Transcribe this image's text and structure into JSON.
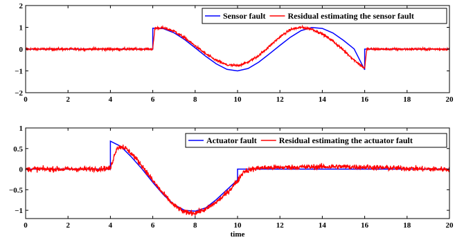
{
  "chart_data": [
    {
      "type": "line",
      "title": "",
      "xlabel": "",
      "ylabel": "",
      "xlim": [
        0,
        20
      ],
      "ylim": [
        -2,
        2
      ],
      "x_ticks": [
        0,
        2,
        4,
        6,
        8,
        10,
        12,
        14,
        16,
        18,
        20
      ],
      "y_ticks": [
        -2,
        -1,
        0,
        1,
        2
      ],
      "x_tick_labels": [
        "0",
        "2",
        "4",
        "6",
        "8",
        "10",
        "12",
        "14",
        "16",
        "18",
        "20"
      ],
      "y_tick_labels": [
        "−2",
        "−1",
        "0",
        "1",
        "2"
      ],
      "grid": false,
      "legend_position": "top-right",
      "series": [
        {
          "name": "Sensor fault",
          "color": "#0000ff",
          "x": [
            0,
            1,
            2,
            3,
            4,
            5,
            6,
            6,
            6.5,
            7,
            7.5,
            8,
            8.5,
            9,
            9.5,
            10,
            10.5,
            11,
            11.5,
            12,
            12.5,
            13,
            13.5,
            14,
            14.5,
            15,
            15.5,
            16,
            16,
            17,
            18,
            19,
            20
          ],
          "y": [
            0,
            0,
            0,
            0,
            0,
            0,
            0,
            0.96,
            0.94,
            0.75,
            0.44,
            0.06,
            -0.33,
            -0.68,
            -0.93,
            -1.0,
            -0.89,
            -0.6,
            -0.22,
            0.17,
            0.55,
            0.85,
            0.99,
            0.95,
            0.74,
            0.4,
            0.01,
            -0.95,
            0,
            0,
            0,
            0,
            0
          ]
        },
        {
          "name": "Residual estimating the sensor fault",
          "color": "#ff0000",
          "x": [
            0,
            1,
            2,
            3,
            4,
            5,
            6,
            6.1,
            6.5,
            7,
            7.5,
            8,
            8.5,
            9,
            9.5,
            10,
            10.5,
            11,
            11.5,
            12,
            12.5,
            13,
            13.5,
            14,
            14.5,
            15,
            15.5,
            16,
            16.1,
            17,
            18,
            19,
            20
          ],
          "y": [
            0,
            0,
            0,
            0,
            0,
            0,
            0,
            0.97,
            0.97,
            0.83,
            0.52,
            0.15,
            -0.22,
            -0.52,
            -0.73,
            -0.76,
            -0.6,
            -0.3,
            0.13,
            0.56,
            0.9,
            1.0,
            0.92,
            0.7,
            0.37,
            -0.05,
            -0.5,
            -0.88,
            0,
            0,
            0,
            0,
            0
          ]
        }
      ]
    },
    {
      "type": "line",
      "title": "",
      "xlabel": "time",
      "ylabel": "",
      "xlim": [
        0,
        20
      ],
      "ylim": [
        -1.2,
        1
      ],
      "x_ticks": [
        0,
        2,
        4,
        6,
        8,
        10,
        12,
        14,
        16,
        18,
        20
      ],
      "y_ticks": [
        -1,
        -0.5,
        0,
        0.5,
        1
      ],
      "x_tick_labels": [
        "0",
        "2",
        "4",
        "6",
        "8",
        "10",
        "12",
        "14",
        "16",
        "18",
        "20"
      ],
      "y_tick_labels": [
        "−1",
        "−0.5",
        "0",
        "0.5",
        "1"
      ],
      "grid": false,
      "legend_position": "top-right",
      "series": [
        {
          "name": "Actuator fault",
          "color": "#0000ff",
          "x": [
            0,
            1,
            2,
            3,
            4,
            4,
            4.5,
            5,
            5.5,
            6,
            6.5,
            7,
            7.5,
            8,
            8.5,
            9,
            9.5,
            10,
            10,
            11,
            12,
            13,
            14,
            15,
            16,
            17,
            18,
            19,
            20
          ],
          "y": [
            0,
            0,
            0,
            0,
            0,
            0.68,
            0.55,
            0.29,
            0.0,
            -0.32,
            -0.62,
            -0.86,
            -1.0,
            -1.02,
            -0.94,
            -0.74,
            -0.5,
            -0.26,
            0,
            0,
            0,
            0,
            0,
            0,
            0,
            0,
            0,
            0,
            0
          ]
        },
        {
          "name": "Residual estimating the actuator fault",
          "color": "#ff0000",
          "x": [
            0,
            1,
            2,
            3,
            4,
            4.3,
            4.6,
            5,
            5.5,
            6,
            6.5,
            7,
            7.5,
            8,
            8.5,
            9,
            9.5,
            10,
            10.3,
            11,
            12,
            13,
            14,
            15,
            16,
            17,
            18,
            19,
            20
          ],
          "y": [
            0,
            0,
            0,
            0,
            0.02,
            0.52,
            0.55,
            0.38,
            0.08,
            -0.28,
            -0.6,
            -0.88,
            -1.05,
            -1.06,
            -0.98,
            -0.8,
            -0.58,
            -0.28,
            -0.05,
            0.03,
            0.04,
            0.05,
            0.06,
            0.06,
            0.05,
            0.03,
            0.02,
            0.0,
            0.0
          ]
        }
      ]
    }
  ]
}
